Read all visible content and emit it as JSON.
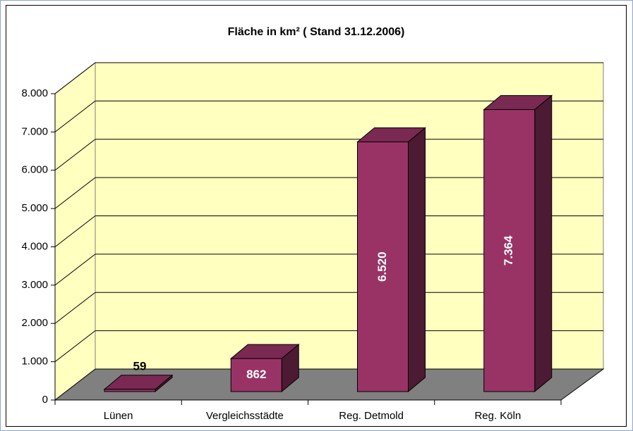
{
  "chart_data": {
    "type": "bar3d",
    "title": "Fläche in km² ( Stand 31.12.2006)",
    "categories": [
      "Lünen",
      "Vergleichsstädte",
      "Reg. Detmold",
      "Reg. Köln"
    ],
    "values": [
      59,
      862,
      6520,
      7364
    ],
    "value_labels": [
      "59",
      "862",
      "6.520",
      "7.364"
    ],
    "color": "#993366",
    "ylim": [
      0,
      8000
    ],
    "yticks": [
      0,
      {
        "value": 1000,
        "label": "1.000"
      },
      {
        "value": 2000,
        "label": "2.000"
      },
      {
        "value": 3000,
        "label": "3.000"
      },
      {
        "value": 4000,
        "label": "4.000"
      },
      {
        "value": 5000,
        "label": "5.000"
      },
      {
        "value": 6000,
        "label": "6.000"
      },
      {
        "value": 7000,
        "label": "7.000"
      },
      {
        "value": 8000,
        "label": "8.000"
      }
    ],
    "grid": true
  }
}
